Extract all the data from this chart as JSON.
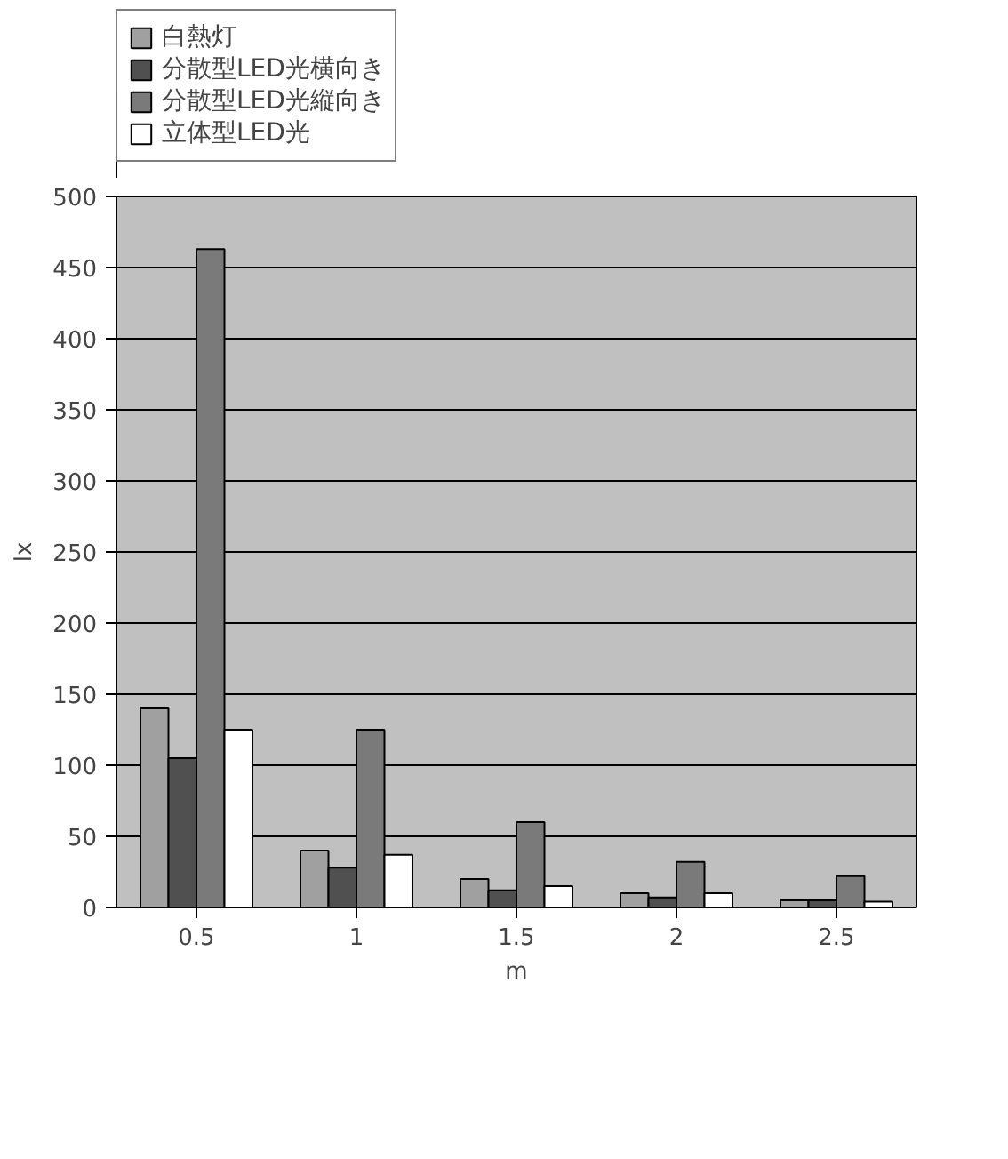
{
  "chart_data": {
    "type": "bar",
    "xlabel": "m",
    "ylabel": "lx",
    "categories": [
      "0.5",
      "1",
      "1.5",
      "2",
      "2.5"
    ],
    "series": [
      {
        "name": "白熱灯",
        "color": "#a0a0a0",
        "values": [
          140,
          40,
          20,
          10,
          5
        ]
      },
      {
        "name": "分散型LED光横向き",
        "color": "#505050",
        "values": [
          105,
          28,
          12,
          7,
          5
        ]
      },
      {
        "name": "分散型LED光縦向き",
        "color": "#7a7a7a",
        "values": [
          463,
          125,
          60,
          32,
          22
        ]
      },
      {
        "name": "立体型LED光",
        "color": "#ffffff",
        "values": [
          125,
          37,
          15,
          10,
          4
        ]
      }
    ],
    "ylim": [
      0,
      500
    ],
    "yticks": [
      0,
      50,
      100,
      150,
      200,
      250,
      300,
      350,
      400,
      450,
      500
    ],
    "grid": "y",
    "legend": "top left"
  }
}
